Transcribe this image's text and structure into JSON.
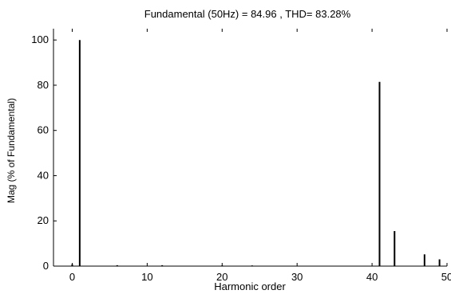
{
  "chart_data": {
    "type": "bar",
    "title": "Fundamental (50Hz) = 84.96 , THD= 83.28%",
    "xlabel": "Harmonic order",
    "ylabel": "Mag (% of Fundamental)",
    "xlim": [
      -2.5,
      50
    ],
    "ylim": [
      0,
      105
    ],
    "xticks": [
      0,
      10,
      20,
      30,
      40,
      50
    ],
    "yticks": [
      0,
      20,
      40,
      60,
      80,
      100
    ],
    "grid": false,
    "x": [
      0,
      1,
      6,
      12,
      20,
      24,
      41,
      43,
      47,
      49
    ],
    "values": [
      0.8,
      100,
      0.4,
      0.4,
      0.3,
      0.3,
      81.5,
      15.5,
      5.2,
      3.0
    ]
  }
}
